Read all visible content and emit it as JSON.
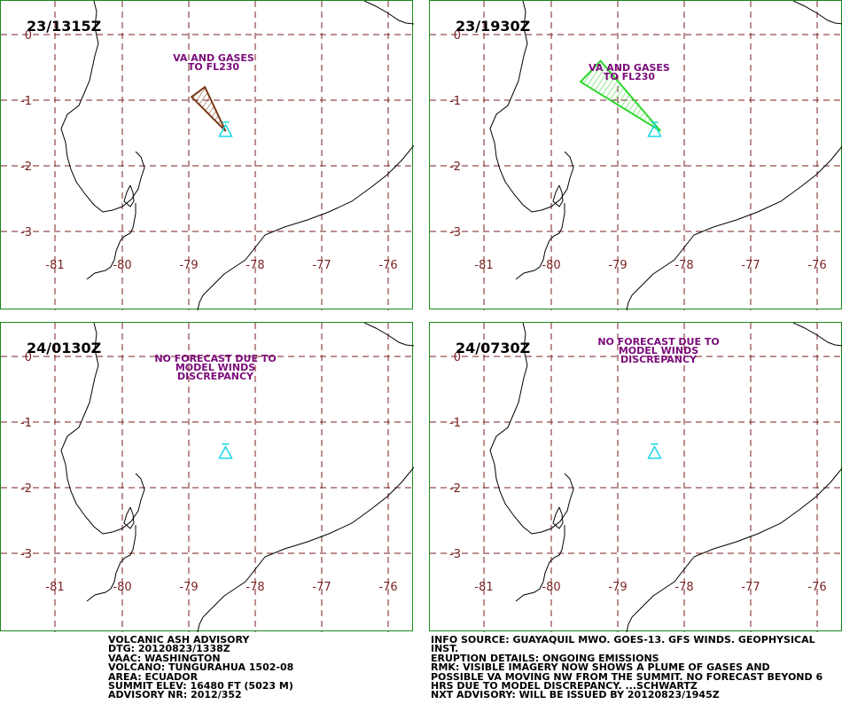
{
  "colors": {
    "frame": "#1a8a1a",
    "grid": "#7a1f1f",
    "tick_label": "#7a1f1f",
    "coast": "#000000",
    "volcano": "#19d7e6",
    "note_text": "#7a0b7a",
    "ash_1315": "#7a3a1a",
    "ash_1930": "#2ed82e"
  },
  "axes": {
    "lon_ticks": [
      "-81",
      "-80",
      "-79",
      "-78",
      "-77",
      "-76"
    ],
    "lat_ticks": [
      "0",
      "-1",
      "-2",
      "-3"
    ]
  },
  "volcano": {
    "name_icon": "volcano-triangle-icon",
    "lon": -78.44,
    "lat": -1.47
  },
  "panels": [
    {
      "time": "23/1315Z",
      "note_lines": [
        "VA AND GASES",
        "TO FL230"
      ],
      "ash_polygon": [
        [
          -78.44,
          -1.47
        ],
        [
          -78.95,
          -0.95
        ],
        [
          -78.75,
          -0.8
        ]
      ],
      "ash_color_key": "ash_1315"
    },
    {
      "time": "23/1930Z",
      "note_lines": [
        "VA AND GASES",
        "TO FL230"
      ],
      "ash_polygon": [
        [
          -78.35,
          -1.47
        ],
        [
          -79.55,
          -0.72
        ],
        [
          -79.25,
          -0.4
        ]
      ],
      "ash_color_key": "ash_1930"
    },
    {
      "time": "24/0130Z",
      "note_lines": [
        "NO FORECAST DUE TO",
        "MODEL WINDS",
        "DISCREPANCY"
      ],
      "ash_polygon": null
    },
    {
      "time": "24/0730Z",
      "note_lines": [
        "NO FORECAST DUE TO",
        "MODEL WINDS",
        "DISCREPANCY"
      ],
      "ash_polygon": null
    }
  ],
  "advisory_left": [
    "VOLCANIC ASH ADVISORY",
    "DTG: 20120823/1338Z",
    "VAAC: WASHINGTON",
    "VOLCANO: TUNGURAHUA 1502-08",
    "AREA: ECUADOR",
    "SUMMIT ELEV: 16480 FT (5023 M)",
    "ADVISORY NR: 2012/352"
  ],
  "advisory_right": [
    "INFO SOURCE: GUAYAQUIL MWO. GOES-13. GFS WINDS. GEOPHYSICAL",
    "INST.",
    "ERUPTION DETAILS: ONGOING EMISSIONS",
    "RMK: VISIBLE IMAGERY NOW SHOWS A PLUME OF GASES AND",
    "POSSIBLE VA MOVING NW FROM THE SUMMIT. NO FORECAST BEYOND 6",
    "HRS DUE TO MODEL DISCREPANCY. ...SCHWARTZ",
    "NXT ADVISORY: WILL BE ISSUED BY 20120823/1945Z"
  ]
}
